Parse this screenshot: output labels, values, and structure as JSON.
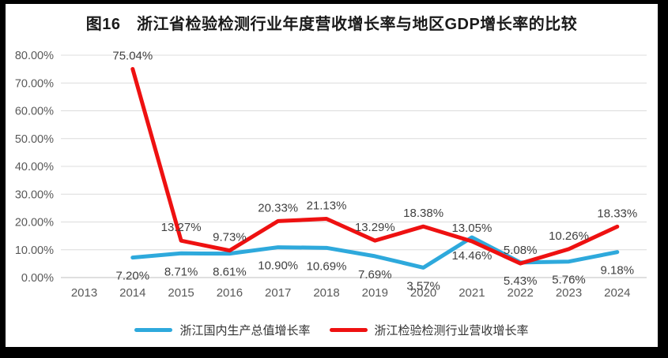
{
  "chart_data": {
    "type": "line",
    "title": "图16　浙江省检验检测行业年度营收增长率与地区GDP增长率的比较",
    "categories": [
      "2013",
      "2014",
      "2015",
      "2016",
      "2017",
      "2018",
      "2019",
      "2020",
      "2021",
      "2022",
      "2023",
      "2024"
    ],
    "series": [
      {
        "name": "浙江国内生产总值增长率",
        "color": "#2EA9DC",
        "label_placement": "below",
        "values": [
          null,
          7.2,
          8.71,
          8.61,
          10.9,
          10.69,
          7.69,
          3.57,
          14.46,
          5.43,
          5.76,
          9.18
        ],
        "labels": [
          "",
          "7.20%",
          "8.71%",
          "8.61%",
          "10.90%",
          "10.69%",
          "7.69%",
          "3.57%",
          "14.46%",
          "5.43%",
          "5.76%",
          "9.18%"
        ]
      },
      {
        "name": "浙江检验检测行业营收增长率",
        "color": "#EE1111",
        "label_placement": "above",
        "values": [
          null,
          75.04,
          13.27,
          9.73,
          20.33,
          21.13,
          13.29,
          18.38,
          13.05,
          5.08,
          10.26,
          18.33
        ],
        "labels": [
          "",
          "75.04%",
          "13.27%",
          "9.73%",
          "20.33%",
          "21.13%",
          "13.29%",
          "18.38%",
          "13.05%",
          "5.08%",
          "10.26%",
          "18.33%"
        ]
      }
    ],
    "yticks": [
      "0.00%",
      "10.00%",
      "20.00%",
      "30.00%",
      "40.00%",
      "50.00%",
      "60.00%",
      "70.00%",
      "80.00%"
    ],
    "ylim": [
      0,
      80
    ],
    "xlabel": "",
    "ylabel": "",
    "grid": "horizontal",
    "legend_position": "bottom"
  },
  "colors": {
    "background": "#000000",
    "panel": "#ffffff",
    "gridline": "#dcdcdc",
    "axis_line": "#bfbfbf",
    "tick_text": "#595959",
    "data_label_text": "#404040"
  }
}
